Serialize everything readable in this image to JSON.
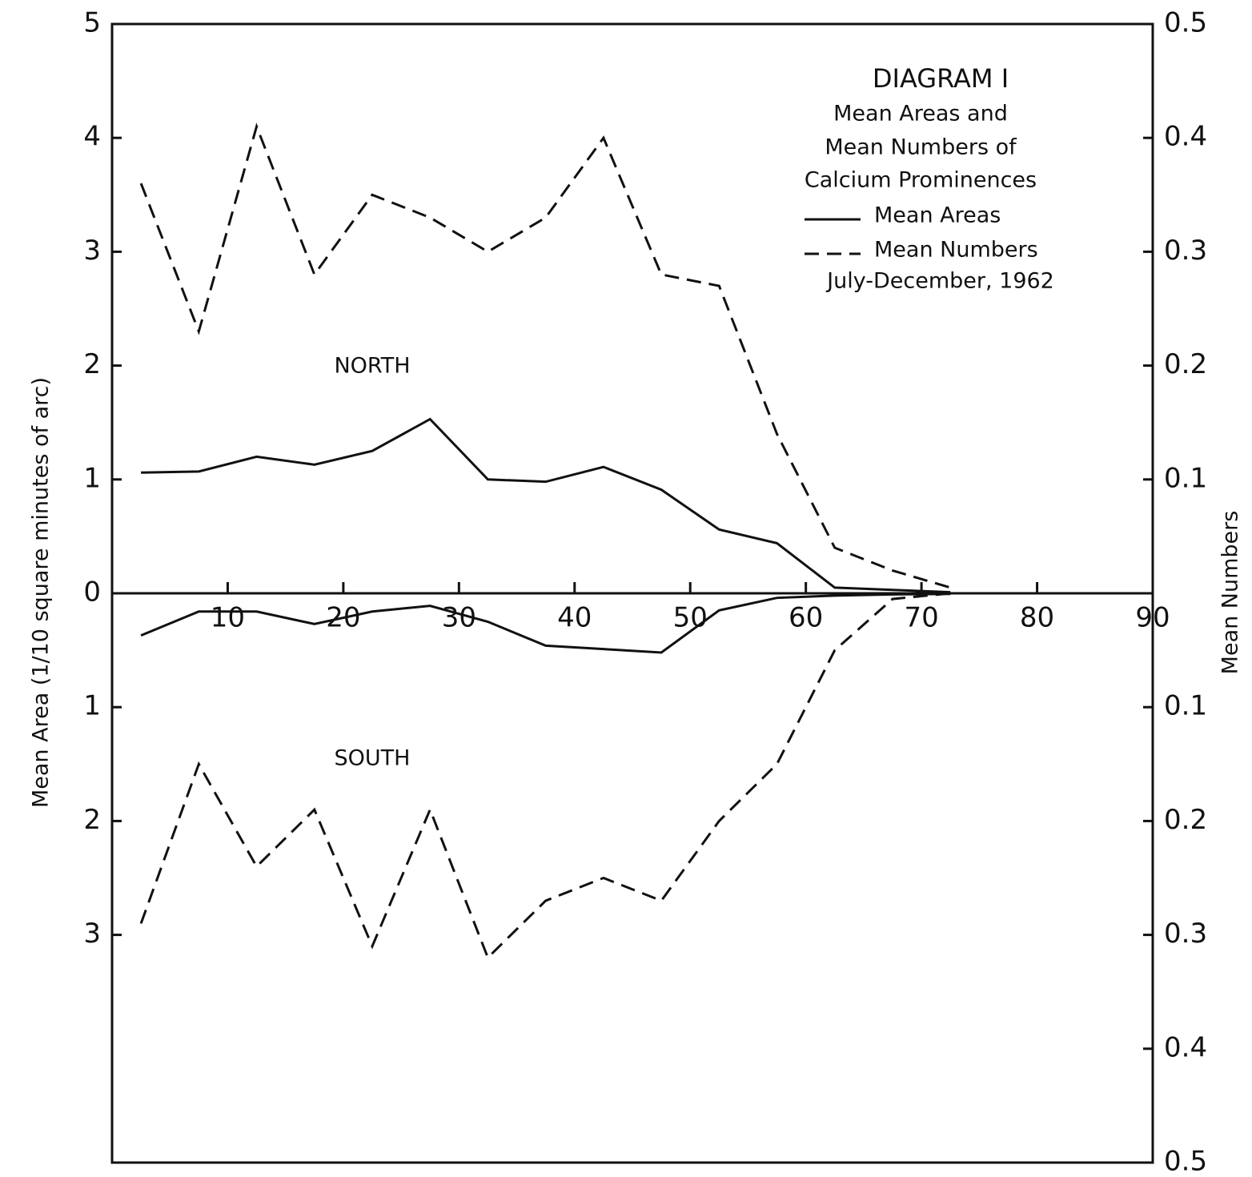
{
  "chart_data": {
    "type": "line",
    "title": "DIAGRAM I",
    "subtitle": [
      "Mean Areas and",
      "Mean Numbers of",
      "Calcium Prominences"
    ],
    "period": "July-December, 1962",
    "y_label": "Mean Area (1/10 square minutes of arc)",
    "y2_label": "Mean Numbers",
    "annotations": [
      "NORTH",
      "SOUTH"
    ],
    "xlim": [
      0,
      90
    ],
    "xticks": [
      10,
      20,
      30,
      40,
      50,
      60,
      70,
      80,
      90
    ],
    "ylim": [
      -5,
      5
    ],
    "yticks": [
      5,
      4,
      3,
      2,
      1,
      0,
      {
        "value": -1,
        "label": "1"
      },
      {
        "value": -2,
        "label": "2"
      },
      {
        "value": -3,
        "label": "3"
      }
    ],
    "y2lim": [
      -0.5,
      0.5
    ],
    "y2ticks": [
      0.5,
      0.4,
      0.3,
      0.2,
      0.1,
      {
        "value": -0.1,
        "label": "0.1"
      },
      {
        "value": -0.2,
        "label": "0.2"
      },
      {
        "value": -0.3,
        "label": "0.3"
      },
      {
        "value": -0.4,
        "label": "0.4"
      },
      {
        "value": -0.5,
        "label": "0.5"
      }
    ],
    "series": [
      {
        "name": "Mean Areas",
        "color": "#111111",
        "dash": false,
        "axis": "y",
        "x": [
          2.5,
          7.5,
          12.5,
          17.5,
          22.5,
          27.5,
          32.5,
          37.5,
          42.5,
          47.5,
          52.5,
          57.5,
          62.5,
          67.5,
          72.5
        ],
        "values": [
          1.06,
          1.07,
          1.2,
          1.13,
          1.25,
          1.53,
          1.0,
          0.98,
          1.11,
          0.91,
          0.56,
          0.44,
          0.05,
          0.03,
          0.01
        ]
      },
      {
        "name": "Mean Numbers",
        "color": "#111111",
        "dash": true,
        "axis": "y2",
        "x": [
          2.5,
          7.5,
          12.5,
          17.5,
          22.5,
          27.5,
          32.5,
          37.5,
          42.5,
          47.5,
          52.5,
          57.5,
          62.5,
          67.5,
          72.5
        ],
        "values": [
          0.36,
          0.23,
          0.41,
          0.28,
          0.35,
          0.33,
          0.3,
          0.33,
          0.4,
          0.28,
          0.27,
          0.14,
          0.04,
          0.02,
          0.005
        ]
      },
      {
        "name": "Mean Areas",
        "color": "#111111",
        "dash": false,
        "axis": "y",
        "x": [
          2.5,
          7.5,
          12.5,
          17.5,
          22.5,
          27.5,
          32.5,
          37.5,
          42.5,
          47.5,
          52.5,
          57.5,
          62.5,
          67.5,
          72.5
        ],
        "values": [
          -0.37,
          -0.16,
          -0.16,
          -0.27,
          -0.16,
          -0.11,
          -0.25,
          -0.46,
          -0.49,
          -0.52,
          -0.15,
          -0.04,
          -0.02,
          -0.01,
          -0.005
        ]
      },
      {
        "name": "Mean Numbers",
        "color": "#111111",
        "dash": true,
        "axis": "y2",
        "x": [
          2.5,
          7.5,
          12.5,
          17.5,
          22.5,
          27.5,
          32.5,
          37.5,
          42.5,
          47.5,
          52.5,
          57.5,
          62.5,
          67.5,
          72.5
        ],
        "values": [
          -0.29,
          -0.15,
          -0.24,
          -0.19,
          -0.31,
          -0.19,
          -0.32,
          -0.27,
          -0.25,
          -0.27,
          -0.2,
          -0.15,
          -0.05,
          -0.005,
          0
        ]
      }
    ]
  }
}
